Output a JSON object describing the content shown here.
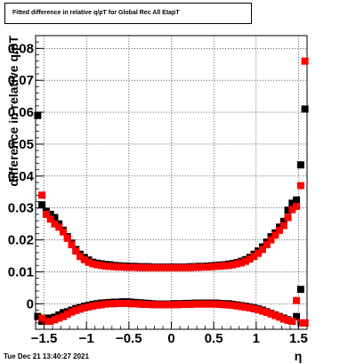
{
  "title": "Fitted difference in relative q/pT for Global Rec All EtapT",
  "timestamp": "Tue Dec 21 13:40:27 2021",
  "chart_data": {
    "type": "scatter",
    "title": "Fitted difference in relative q/pT for Global Rec All EtapT",
    "xlabel": "η",
    "ylabel": "difference in relative q/pT",
    "xlim": [
      -1.6,
      1.6
    ],
    "ylim": [
      -0.008,
      0.084
    ],
    "grid": true,
    "x_ticks": [
      -1.5,
      -1,
      -0.5,
      0,
      0.5,
      1,
      1.5
    ],
    "x_tick_labels": [
      "−1.5",
      "−1",
      "−0.5",
      "0",
      "0.5",
      "1",
      "1.5"
    ],
    "y_ticks": [
      0,
      0.01,
      0.02,
      0.03,
      0.04,
      0.05,
      0.06,
      0.07,
      0.08
    ],
    "y_tick_labels": [
      "0",
      "0.01",
      "0.02",
      "0.03",
      "0.04",
      "0.05",
      "0.06",
      "0.07",
      "0.08"
    ],
    "series": [
      {
        "color": "#000000",
        "marker": "square",
        "points": [
          [
            -1.575,
            0.059
          ],
          [
            -1.525,
            0.031
          ],
          [
            -1.475,
            0.029
          ],
          [
            -1.425,
            0.028
          ],
          [
            -1.375,
            0.027
          ],
          [
            -1.325,
            0.025
          ],
          [
            -1.275,
            0.023
          ],
          [
            -1.225,
            0.021
          ],
          [
            -1.175,
            0.019
          ],
          [
            -1.125,
            0.017
          ],
          [
            -1.075,
            0.0155
          ],
          [
            -1.025,
            0.0145
          ],
          [
            -0.975,
            0.0137
          ],
          [
            -0.925,
            0.013
          ],
          [
            -0.875,
            0.0127
          ],
          [
            -0.825,
            0.0125
          ],
          [
            -0.775,
            0.0123
          ],
          [
            -0.725,
            0.0122
          ],
          [
            -0.675,
            0.012
          ],
          [
            -0.625,
            0.0119
          ],
          [
            -0.575,
            0.0118
          ],
          [
            -0.525,
            0.0118
          ],
          [
            -0.475,
            0.0117
          ],
          [
            -0.425,
            0.0117
          ],
          [
            -0.375,
            0.0116
          ],
          [
            -0.325,
            0.0116
          ],
          [
            -0.275,
            0.0116
          ],
          [
            -0.225,
            0.0115
          ],
          [
            -0.175,
            0.0115
          ],
          [
            -0.125,
            0.0115
          ],
          [
            -0.075,
            0.0115
          ],
          [
            -0.025,
            0.0115
          ],
          [
            0.025,
            0.0115
          ],
          [
            0.075,
            0.0115
          ],
          [
            0.125,
            0.0115
          ],
          [
            0.175,
            0.0115
          ],
          [
            0.225,
            0.0116
          ],
          [
            0.275,
            0.0116
          ],
          [
            0.325,
            0.0117
          ],
          [
            0.375,
            0.0117
          ],
          [
            0.425,
            0.0118
          ],
          [
            0.475,
            0.0119
          ],
          [
            0.525,
            0.012
          ],
          [
            0.575,
            0.0121
          ],
          [
            0.625,
            0.0122
          ],
          [
            0.675,
            0.0124
          ],
          [
            0.725,
            0.0126
          ],
          [
            0.775,
            0.0129
          ],
          [
            0.825,
            0.0133
          ],
          [
            0.875,
            0.0138
          ],
          [
            0.925,
            0.0145
          ],
          [
            0.975,
            0.0155
          ],
          [
            1.025,
            0.0165
          ],
          [
            1.075,
            0.0178
          ],
          [
            1.125,
            0.0193
          ],
          [
            1.175,
            0.021
          ],
          [
            1.225,
            0.0222
          ],
          [
            1.275,
            0.024
          ],
          [
            1.325,
            0.0258
          ],
          [
            1.375,
            0.0293
          ],
          [
            1.425,
            0.0315
          ],
          [
            1.475,
            0.0325
          ],
          [
            1.525,
            0.0435
          ],
          [
            1.575,
            0.061
          ],
          [
            -1.575,
            -0.004
          ],
          [
            -1.525,
            -0.0055
          ],
          [
            -1.475,
            -0.0045
          ],
          [
            -1.425,
            -0.0045
          ],
          [
            -1.375,
            -0.0042
          ],
          [
            -1.325,
            -0.0035
          ],
          [
            -1.275,
            -0.0028
          ],
          [
            -1.225,
            -0.0025
          ],
          [
            -1.175,
            -0.002
          ],
          [
            -1.125,
            -0.0015
          ],
          [
            -1.075,
            -0.0012
          ],
          [
            -1.025,
            -0.0008
          ],
          [
            -0.975,
            -0.0005
          ],
          [
            -0.925,
            -0.0002
          ],
          [
            -0.875,
            0.0
          ],
          [
            -0.825,
            0.0002
          ],
          [
            -0.775,
            0.0003
          ],
          [
            -0.725,
            0.0004
          ],
          [
            -0.675,
            0.0005
          ],
          [
            -0.625,
            0.0005
          ],
          [
            -0.575,
            0.0006
          ],
          [
            -0.525,
            0.0006
          ],
          [
            -0.475,
            0.0005
          ],
          [
            -0.425,
            0.0004
          ],
          [
            -0.375,
            0.0003
          ],
          [
            -0.325,
            0.0002
          ],
          [
            -0.275,
            0.0001
          ],
          [
            -0.225,
            0.0
          ],
          [
            -0.175,
            -0.0001
          ],
          [
            -0.125,
            -0.0001
          ],
          [
            -0.075,
            -0.0001
          ],
          [
            -0.025,
            -0.0001
          ],
          [
            0.025,
            0.0
          ],
          [
            0.075,
            0.0
          ],
          [
            0.125,
            0.0
          ],
          [
            0.175,
            0.0001
          ],
          [
            0.225,
            0.0001
          ],
          [
            0.275,
            0.0002
          ],
          [
            0.325,
            0.0002
          ],
          [
            0.375,
            0.0002
          ],
          [
            0.425,
            0.0002
          ],
          [
            0.475,
            0.0002
          ],
          [
            0.525,
            0.0002
          ],
          [
            0.575,
            0.0001
          ],
          [
            0.625,
            0.0
          ],
          [
            0.675,
            0.0
          ],
          [
            0.725,
            -0.0002
          ],
          [
            0.775,
            -0.0004
          ],
          [
            0.825,
            -0.0006
          ],
          [
            0.875,
            -0.0008
          ],
          [
            0.925,
            -0.001
          ],
          [
            0.975,
            -0.0013
          ],
          [
            1.025,
            -0.0016
          ],
          [
            1.075,
            -0.002
          ],
          [
            1.125,
            -0.0025
          ],
          [
            1.175,
            -0.003
          ],
          [
            1.225,
            -0.0035
          ],
          [
            1.275,
            -0.004
          ],
          [
            1.325,
            -0.0045
          ],
          [
            1.375,
            -0.005
          ],
          [
            1.425,
            -0.0055
          ],
          [
            1.475,
            -0.004
          ],
          [
            1.525,
            0.0045
          ],
          [
            1.575,
            -0.006
          ]
        ]
      },
      {
        "color": "#ff0000",
        "marker": "square",
        "points": [
          [
            -1.525,
            0.034
          ],
          [
            -1.475,
            0.028
          ],
          [
            -1.425,
            0.0265
          ],
          [
            -1.375,
            0.025
          ],
          [
            -1.325,
            0.024
          ],
          [
            -1.275,
            0.0225
          ],
          [
            -1.225,
            0.0205
          ],
          [
            -1.175,
            0.0185
          ],
          [
            -1.125,
            0.0165
          ],
          [
            -1.075,
            0.0148
          ],
          [
            -1.025,
            0.0138
          ],
          [
            -0.975,
            0.013
          ],
          [
            -0.925,
            0.0125
          ],
          [
            -0.875,
            0.0122
          ],
          [
            -0.825,
            0.012
          ],
          [
            -0.775,
            0.0118
          ],
          [
            -0.725,
            0.0117
          ],
          [
            -0.675,
            0.0116
          ],
          [
            -0.625,
            0.0115
          ],
          [
            -0.575,
            0.0115
          ],
          [
            -0.525,
            0.0114
          ],
          [
            -0.475,
            0.0114
          ],
          [
            -0.425,
            0.0114
          ],
          [
            -0.375,
            0.0113
          ],
          [
            -0.325,
            0.0113
          ],
          [
            -0.275,
            0.0113
          ],
          [
            -0.225,
            0.0113
          ],
          [
            -0.175,
            0.0113
          ],
          [
            -0.125,
            0.0113
          ],
          [
            -0.075,
            0.0113
          ],
          [
            -0.025,
            0.0113
          ],
          [
            0.025,
            0.0113
          ],
          [
            0.075,
            0.0113
          ],
          [
            0.125,
            0.0113
          ],
          [
            0.175,
            0.0113
          ],
          [
            0.225,
            0.0113
          ],
          [
            0.275,
            0.0114
          ],
          [
            0.325,
            0.0114
          ],
          [
            0.375,
            0.0115
          ],
          [
            0.425,
            0.0115
          ],
          [
            0.475,
            0.0116
          ],
          [
            0.525,
            0.0117
          ],
          [
            0.575,
            0.0118
          ],
          [
            0.625,
            0.0119
          ],
          [
            0.675,
            0.012
          ],
          [
            0.725,
            0.0122
          ],
          [
            0.775,
            0.0125
          ],
          [
            0.825,
            0.0128
          ],
          [
            0.875,
            0.0133
          ],
          [
            0.925,
            0.014
          ],
          [
            0.975,
            0.0148
          ],
          [
            1.025,
            0.0158
          ],
          [
            1.075,
            0.017
          ],
          [
            1.125,
            0.0185
          ],
          [
            1.175,
            0.02
          ],
          [
            1.225,
            0.0215
          ],
          [
            1.275,
            0.023
          ],
          [
            1.325,
            0.0245
          ],
          [
            1.375,
            0.027
          ],
          [
            1.425,
            0.0295
          ],
          [
            1.475,
            0.0305
          ],
          [
            1.525,
            0.037
          ],
          [
            1.575,
            0.076
          ],
          [
            -1.525,
            -0.0045
          ],
          [
            -1.475,
            -0.0055
          ],
          [
            -1.425,
            -0.0055
          ],
          [
            -1.375,
            -0.005
          ],
          [
            -1.325,
            -0.0045
          ],
          [
            -1.275,
            -0.004
          ],
          [
            -1.225,
            -0.0033
          ],
          [
            -1.175,
            -0.0026
          ],
          [
            -1.125,
            -0.0021
          ],
          [
            -1.075,
            -0.0017
          ],
          [
            -1.025,
            -0.0013
          ],
          [
            -0.975,
            -0.001
          ],
          [
            -0.925,
            -0.0007
          ],
          [
            -0.875,
            -0.0005
          ],
          [
            -0.825,
            -0.0003
          ],
          [
            -0.775,
            -0.0001
          ],
          [
            -0.725,
            0.0
          ],
          [
            -0.675,
            0.0
          ],
          [
            -0.625,
            0.0001
          ],
          [
            -0.575,
            0.0001
          ],
          [
            -0.525,
            0.0001
          ],
          [
            -0.475,
            0.0
          ],
          [
            -0.425,
            0.0
          ],
          [
            -0.375,
            -0.0001
          ],
          [
            -0.325,
            -0.0002
          ],
          [
            -0.275,
            -0.0002
          ],
          [
            -0.225,
            -0.0003
          ],
          [
            -0.175,
            -0.0003
          ],
          [
            -0.125,
            -0.0003
          ],
          [
            -0.075,
            -0.0003
          ],
          [
            -0.025,
            -0.0003
          ],
          [
            0.025,
            -0.0003
          ],
          [
            0.075,
            -0.0003
          ],
          [
            0.125,
            -0.0002
          ],
          [
            0.175,
            -0.0002
          ],
          [
            0.225,
            -0.0002
          ],
          [
            0.275,
            -0.0001
          ],
          [
            0.325,
            -0.0001
          ],
          [
            0.375,
            -0.0001
          ],
          [
            0.425,
            -0.0001
          ],
          [
            0.475,
            -0.0001
          ],
          [
            0.525,
            -0.0001
          ],
          [
            0.575,
            -0.0002
          ],
          [
            0.625,
            -0.0003
          ],
          [
            0.675,
            -0.0004
          ],
          [
            0.725,
            -0.0005
          ],
          [
            0.775,
            -0.0007
          ],
          [
            0.825,
            -0.0009
          ],
          [
            0.875,
            -0.0011
          ],
          [
            0.925,
            -0.0013
          ],
          [
            0.975,
            -0.0016
          ],
          [
            1.025,
            -0.0019
          ],
          [
            1.075,
            -0.0023
          ],
          [
            1.125,
            -0.0027
          ],
          [
            1.175,
            -0.0032
          ],
          [
            1.225,
            -0.0037
          ],
          [
            1.275,
            -0.0042
          ],
          [
            1.325,
            -0.0048
          ],
          [
            1.375,
            -0.0052
          ],
          [
            1.425,
            -0.0055
          ],
          [
            1.475,
            0.001
          ],
          [
            1.525,
            -0.006
          ],
          [
            1.575,
            -0.006
          ]
        ]
      }
    ]
  }
}
